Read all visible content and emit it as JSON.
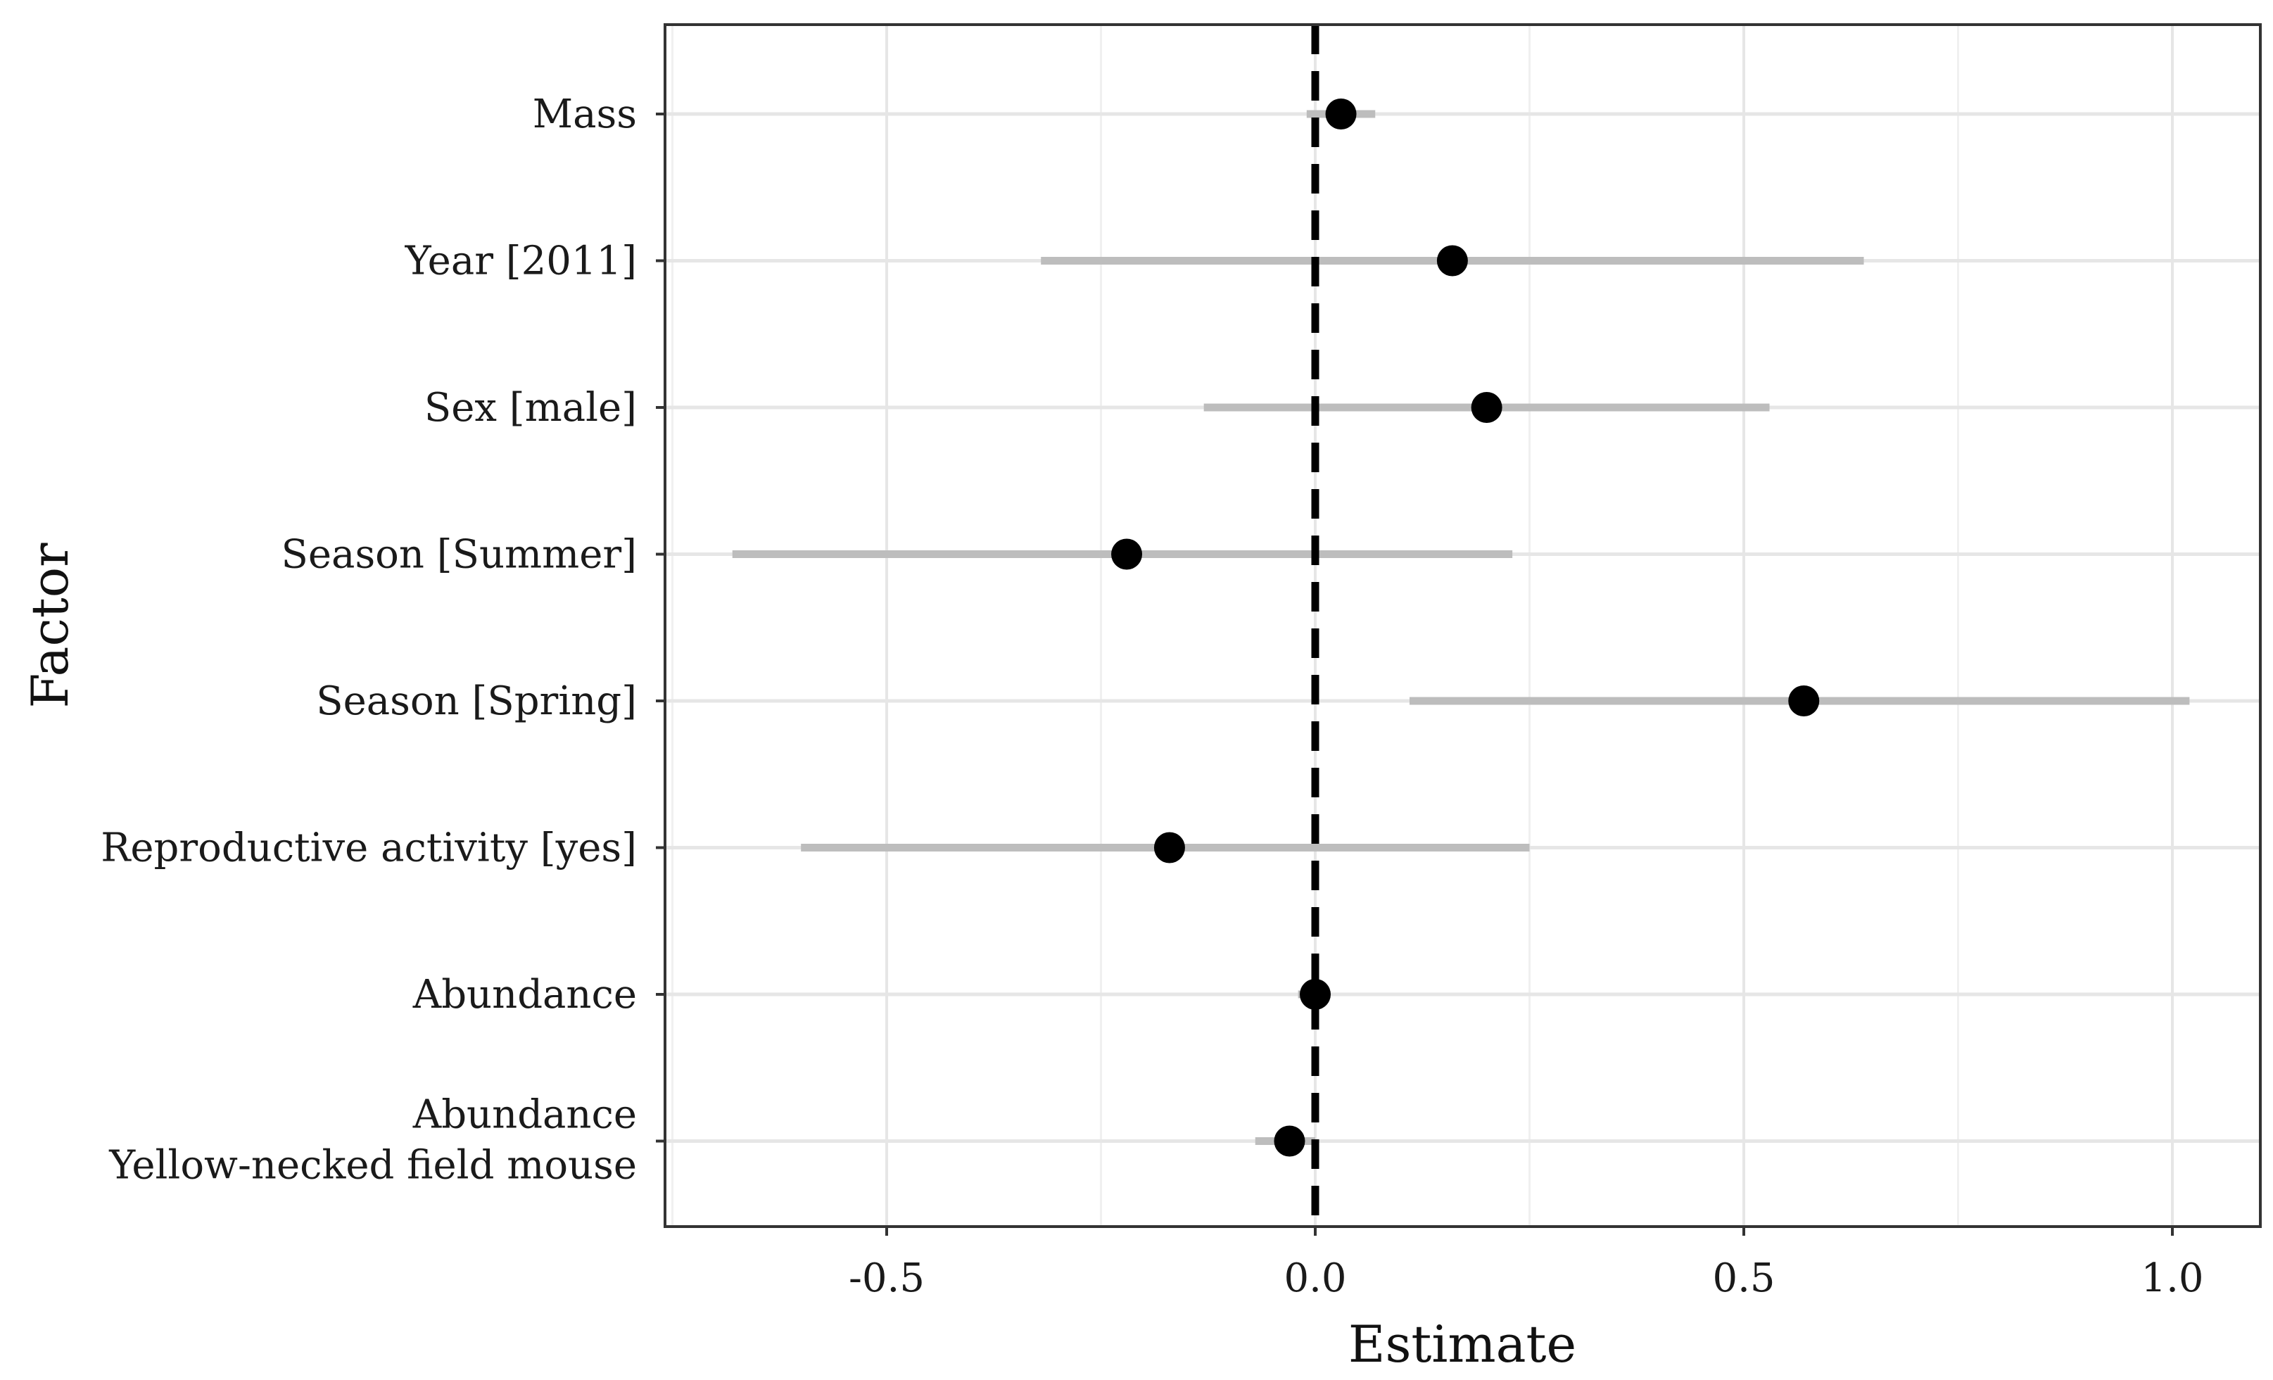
{
  "chart_data": {
    "type": "forest",
    "title": "",
    "xlabel": "Estimate",
    "ylabel": "Factor",
    "xlim": [
      -0.75,
      1.1
    ],
    "xticks": [
      -0.5,
      0.0,
      0.5,
      1.0
    ],
    "xtick_labels": [
      "-0.5",
      "0.0",
      "0.5",
      "1.0"
    ],
    "reference_line": 0.0,
    "grid": true,
    "factors": [
      {
        "label": "Mass",
        "estimate": 0.03,
        "low": -0.01,
        "high": 0.07
      },
      {
        "label": "Year [2011]",
        "estimate": 0.16,
        "low": -0.32,
        "high": 0.64
      },
      {
        "label": "Sex [male]",
        "estimate": 0.2,
        "low": -0.13,
        "high": 0.53
      },
      {
        "label": "Season [Summer]",
        "estimate": -0.22,
        "low": -0.68,
        "high": 0.23
      },
      {
        "label": "Season [Spring]",
        "estimate": 0.57,
        "low": 0.11,
        "high": 1.02
      },
      {
        "label": "Reproductive activity [yes]",
        "estimate": -0.17,
        "low": -0.6,
        "high": 0.25
      },
      {
        "label": "Abundance",
        "estimate": 0.0,
        "low": -0.02,
        "high": 0.01
      },
      {
        "label": "Abundance\nYellow-necked field mouse",
        "estimate": -0.03,
        "low": -0.07,
        "high": 0.0
      }
    ],
    "colors": {
      "point": "#000000",
      "interval": "#bdbdbd",
      "grid": "#e6e6e6",
      "panel_border": "#333333",
      "reference": "#000000"
    }
  }
}
